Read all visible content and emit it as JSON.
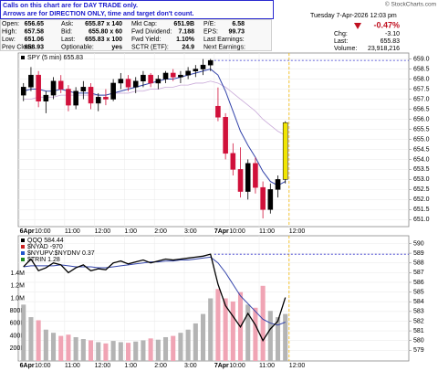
{
  "notice": [
    "Calls on this chart are for DAY TRADE only.",
    "Arrows are for DIRECTION ONLY, time and target don't count."
  ],
  "quote": {
    "rows": [
      [
        [
          "Open:",
          "656.65"
        ],
        [
          "Ask:",
          "655.87 x 140"
        ],
        [
          "Mkt Cap:",
          "651.9B"
        ],
        [
          "P/E:",
          "6.58"
        ]
      ],
      [
        [
          "High:",
          "657.58"
        ],
        [
          "Bid:",
          "655.80 x 60"
        ],
        [
          "Fwd Dividend:",
          "7.188"
        ],
        [
          "EPS:",
          "99.73"
        ]
      ],
      [
        [
          "Low:",
          "651.06"
        ],
        [
          "Last:",
          "655.83 x 100"
        ],
        [
          "Fwd Yield:",
          "1.10%"
        ],
        [
          "Last Earnings:"
        ]
      ],
      [
        [
          "Prev Close:",
          "658.93"
        ],
        [
          "Optionable:",
          "yes"
        ],
        [
          "SCTR (ETF):",
          "24.9"
        ],
        [
          "Next Earnings:"
        ]
      ]
    ]
  },
  "header": {
    "copyright": "© StockCharts.com",
    "datetime": "Tuesday  7-Apr-2026  12:03 pm",
    "change_pct": "-0.47%",
    "change_label": "Chg:",
    "change": "-3.10",
    "last_label": "Last:",
    "last": "655.83",
    "volume_label": "Volume:",
    "volume": "23,918,216"
  },
  "chart_data": [
    {
      "type": "candlestick",
      "legend": [
        {
          "name": "SPY (5 min) 655.83",
          "color": "#000000"
        }
      ],
      "x": [
        0.125,
        0.375,
        0.625,
        0.875,
        1.125,
        1.375,
        1.625,
        1.875,
        2.125,
        2.375,
        2.625,
        2.875,
        3.125,
        3.375,
        3.625,
        3.875,
        4.125,
        4.375,
        4.625,
        4.875,
        5.125,
        5.375,
        5.625,
        5.875,
        6.125,
        6.375,
        6.625,
        6.875,
        7.125,
        7.375,
        7.625,
        7.875,
        8.125,
        8.375,
        8.625,
        8.875
      ],
      "open": [
        657.2,
        657.6,
        658.2,
        656.9,
        657.2,
        657.9,
        657.5,
        656.7,
        657.4,
        657.6,
        656.8,
        657.1,
        657.0,
        657.8,
        658.0,
        657.6,
        657.9,
        658.2,
        657.8,
        658.0,
        658.3,
        658.1,
        658.2,
        658.4,
        658.5,
        658.7,
        656.65,
        656.1,
        654.3,
        653.5,
        652.4,
        653.8,
        652.6,
        651.5,
        652.5,
        653.0
      ],
      "high": [
        657.8,
        658.6,
        658.4,
        657.4,
        658.1,
        658.2,
        657.7,
        657.6,
        657.9,
        657.8,
        657.3,
        657.5,
        658.0,
        658.3,
        658.2,
        658.1,
        658.4,
        658.3,
        658.2,
        658.4,
        658.5,
        658.4,
        658.6,
        658.7,
        659.0,
        659.0,
        657.58,
        656.3,
        654.8,
        654.6,
        654.0,
        654.1,
        652.9,
        652.8,
        653.2,
        655.9
      ],
      "low": [
        656.9,
        657.4,
        656.6,
        656.3,
        657.0,
        657.3,
        656.4,
        656.5,
        657.0,
        656.5,
        656.4,
        656.7,
        656.9,
        657.5,
        657.4,
        657.3,
        657.6,
        657.6,
        657.5,
        657.8,
        657.9,
        657.8,
        658.0,
        658.1,
        658.2,
        658.4,
        655.9,
        654.0,
        653.2,
        652.1,
        652.0,
        652.3,
        651.06,
        651.3,
        652.1,
        652.8
      ],
      "close": [
        657.6,
        658.2,
        656.9,
        657.2,
        657.9,
        657.5,
        656.7,
        657.4,
        657.6,
        656.8,
        657.1,
        657.0,
        657.8,
        658.0,
        657.6,
        657.9,
        658.2,
        657.8,
        658.0,
        658.3,
        658.1,
        658.2,
        658.4,
        658.5,
        658.7,
        658.93,
        656.1,
        654.3,
        653.5,
        652.4,
        653.8,
        652.6,
        651.5,
        652.5,
        653.0,
        655.83
      ],
      "up_color": "#000000",
      "down_color": "#d0103a",
      "last_color": "#f2e600",
      "overlays": [
        {
          "color": "#3344aa",
          "values": [
            657.4,
            657.5,
            657.5,
            657.4,
            657.4,
            657.5,
            657.4,
            657.3,
            657.3,
            657.3,
            657.2,
            657.2,
            657.3,
            657.4,
            657.5,
            657.6,
            657.7,
            657.8,
            657.9,
            658.0,
            658.0,
            658.1,
            658.2,
            658.3,
            658.4,
            658.5,
            658.2,
            657.4,
            656.4,
            655.4,
            654.7,
            654.1,
            653.4,
            652.9,
            652.7,
            652.9
          ]
        },
        {
          "color": "#c8a8d8",
          "values": [
            657.0,
            657.0,
            657.1,
            657.1,
            657.1,
            657.2,
            657.2,
            657.2,
            657.2,
            657.2,
            657.2,
            657.2,
            657.3,
            657.3,
            657.3,
            657.4,
            657.4,
            657.5,
            657.5,
            657.6,
            657.6,
            657.7,
            657.7,
            657.8,
            657.8,
            657.9,
            657.8,
            657.6,
            657.3,
            657.0,
            656.7,
            656.4,
            656.0,
            655.7,
            655.4,
            655.2
          ]
        }
      ],
      "xlim": [
        -0.05,
        13.0
      ],
      "xticks": [
        {
          "value": 0,
          "label": "6Apr"
        },
        {
          "value": 0.5,
          "label": "10:00"
        },
        {
          "value": 1.5,
          "label": "11:00"
        },
        {
          "value": 2.5,
          "label": "12:00"
        },
        {
          "value": 3.5,
          "label": "1:00"
        },
        {
          "value": 4.5,
          "label": "2:00"
        },
        {
          "value": 5.5,
          "label": "3:00"
        },
        {
          "value": 6.5,
          "label": "7Apr"
        },
        {
          "value": 7,
          "label": "10:00"
        },
        {
          "value": 8,
          "label": "11:00"
        },
        {
          "value": 9,
          "label": "12:00"
        }
      ],
      "ylim": [
        650.65,
        659.3
      ],
      "yticks": [
        {
          "value": 651,
          "label": "651.0"
        },
        651.5,
        {
          "value": 652,
          "label": "652.0"
        },
        652.5,
        {
          "value": 653,
          "label": "653.0"
        },
        653.5,
        {
          "value": 654,
          "label": "654.0"
        },
        654.5,
        {
          "value": 655,
          "label": "655.0"
        },
        655.5,
        {
          "value": 656,
          "label": "656.0"
        },
        656.5,
        {
          "value": 657,
          "label": "657.0"
        },
        657.5,
        {
          "value": 658,
          "label": "658.0"
        },
        658.5,
        {
          "value": 659,
          "label": "659.0"
        }
      ],
      "grid": true,
      "ref_color": "#3333cc",
      "marker_color": "#f0b400"
    },
    {
      "type": "line",
      "legend": [
        {
          "name": "QQQ 584.44",
          "color": "#000000"
        },
        {
          "name": "$NYAD -970",
          "color": "#cc2222"
        },
        {
          "name": "$NYUPV:$NYDNV 0.37",
          "color": "#2255cc"
        },
        {
          "name": "$TRIN 1.28",
          "color": "#228822"
        }
      ],
      "color": "#000000",
      "values": [
        587.6,
        588.4,
        587.2,
        587.5,
        588.0,
        587.8,
        587.0,
        587.5,
        587.8,
        587.2,
        587.4,
        587.3,
        588.0,
        588.2,
        587.9,
        588.1,
        588.3,
        588.0,
        588.2,
        588.4,
        588.3,
        588.4,
        588.5,
        588.6,
        588.7,
        588.9,
        585.8,
        583.6,
        582.5,
        581.4,
        582.8,
        581.6,
        580.0,
        581.2,
        582.0,
        584.44
      ],
      "overlays": [
        {
          "color": "#3344aa",
          "values": [
            587.6,
            587.7,
            587.7,
            587.7,
            587.7,
            587.8,
            587.7,
            587.6,
            587.6,
            587.6,
            587.5,
            587.5,
            587.6,
            587.7,
            587.8,
            587.9,
            588.0,
            588.1,
            588.1,
            588.2,
            588.2,
            588.3,
            588.3,
            588.4,
            588.5,
            588.6,
            588.0,
            587.0,
            585.8,
            584.6,
            583.8,
            583.0,
            582.2,
            581.8,
            581.6,
            581.9
          ]
        }
      ],
      "volumes": [
        900000,
        700000,
        650000,
        500000,
        450000,
        400000,
        420000,
        380000,
        350000,
        330000,
        300000,
        280000,
        320000,
        300000,
        290000,
        310000,
        330000,
        360000,
        340000,
        380000,
        400000,
        450000,
        500000,
        600000,
        750000,
        1000000,
        1150000,
        1000000,
        950000,
        1100000,
        900000,
        850000,
        1200000,
        800000,
        700000,
        750000
      ],
      "volume_up_color": "#b4b4b4",
      "volume_down_color": "#f0a4b4",
      "ylim": [
        577.9,
        590.8
      ],
      "yticks": [
        579,
        580,
        581,
        582,
        583,
        584,
        585,
        586,
        587,
        588,
        589,
        590
      ],
      "y2lim": [
        0,
        2000000
      ],
      "y2ticks": [
        {
          "value": 200000,
          "label": "200K"
        },
        {
          "value": 400000,
          "label": "400K"
        },
        {
          "value": 600000,
          "label": "600K"
        },
        {
          "value": 800000,
          "label": "800K"
        },
        {
          "value": 1000000,
          "label": "1.0M"
        },
        {
          "value": 1200000,
          "label": "1.2M"
        },
        {
          "value": 1400000,
          "label": "1.4M"
        }
      ],
      "grid": true
    }
  ]
}
